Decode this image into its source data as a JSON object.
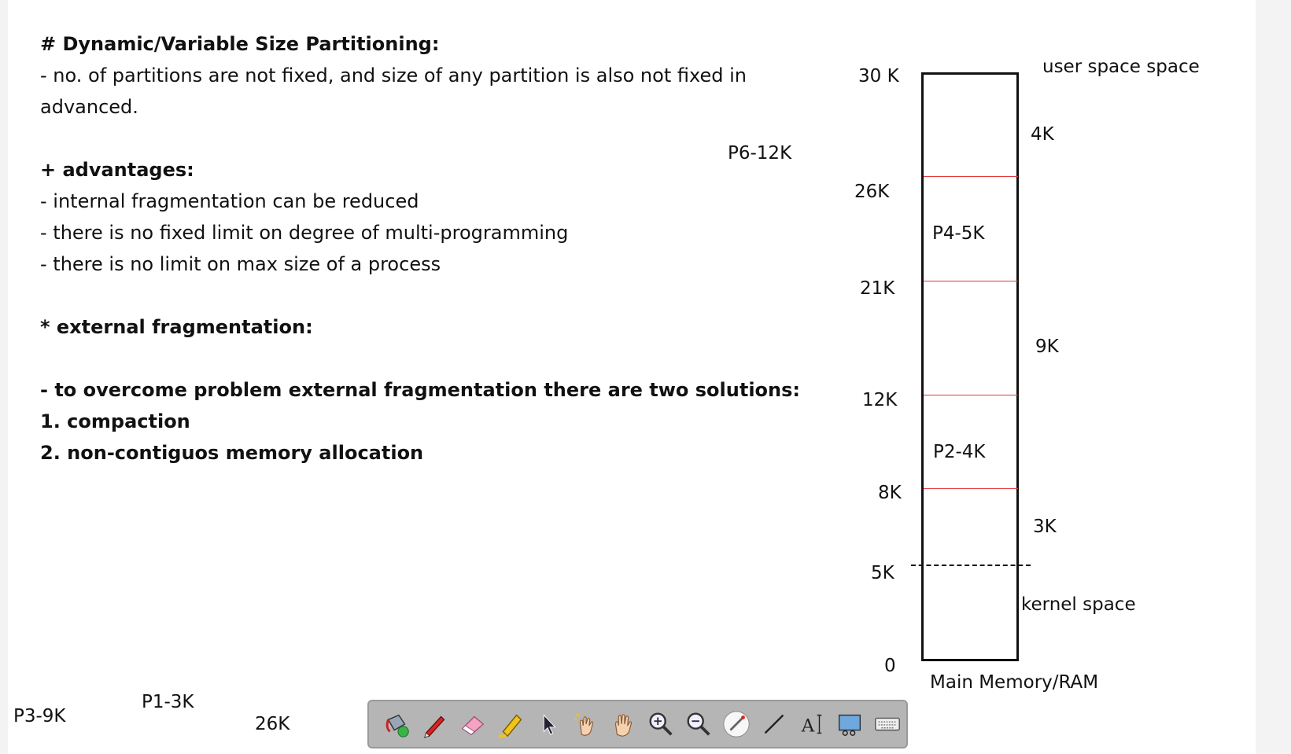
{
  "notes": {
    "heading": "# Dynamic/Variable Size Partitioning:",
    "line1": "- no. of partitions are not fixed, and size of any partition is also not fixed in",
    "line2": "advanced.",
    "advantages_heading": "+ advantages:",
    "adv1": "- internal fragmentation can be reduced",
    "adv2": "- there is no fixed limit on degree of multi-programming",
    "adv3": "- there is no limit on max size of a process",
    "ext_frag": "* external fragmentation:",
    "overcome": "- to overcome problem external fragmentation there are two solutions:",
    "sol1": "1. compaction",
    "sol2": "2. non-contiguos memory allocation"
  },
  "diagram": {
    "p6": "P6-12K",
    "addr_30k": "30 K",
    "addr_26k": "26K",
    "addr_21k": "21K",
    "addr_12k": "12K",
    "addr_8k": "8K",
    "addr_5k": "5K",
    "addr_0": "0",
    "user_space": "user space space",
    "free_4k": "4K",
    "free_9k": "9K",
    "free_3k": "3K",
    "p4": "P4-5K",
    "p2": "P2-4K",
    "kernel_space": "kernel space",
    "caption": "Main Memory/RAM"
  },
  "bottom": {
    "p3": "P3-9K",
    "p1": "P1-3K",
    "k26": "26K"
  },
  "toolbar": {
    "tools": [
      "paint-bucket-icon",
      "pen-icon",
      "eraser-icon",
      "highlighter-icon",
      "pointer-icon",
      "magic-hand-icon",
      "hand-icon",
      "zoom-in-icon",
      "zoom-out-icon",
      "laser-pointer-icon",
      "line-icon",
      "text-icon",
      "screen-capture-icon",
      "keyboard-icon"
    ]
  }
}
